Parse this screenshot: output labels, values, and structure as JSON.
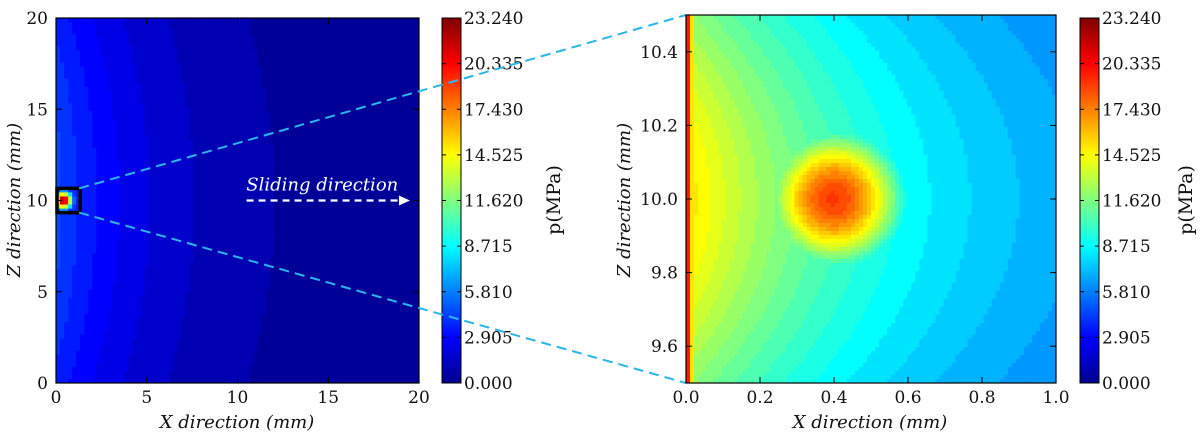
{
  "chart_data": [
    {
      "type": "heatmap",
      "panel": "left",
      "xlabel": "X direction (mm)",
      "ylabel": "Z direction (mm)",
      "xlim": [
        0,
        20
      ],
      "ylim": [
        0,
        20
      ],
      "xticks": [
        "0",
        "5",
        "10",
        "15",
        "20"
      ],
      "yticks": [
        "0",
        "5",
        "10",
        "15",
        "20"
      ],
      "field": {
        "peak_value": 23.24,
        "peak_x": 0.4,
        "peak_z": 10.0,
        "edge_value": 4.0,
        "far_value": 0.4
      },
      "annotation": {
        "text": "Sliding direction",
        "arrow_from": [
          10.5,
          10.0
        ],
        "arrow_to": [
          19.5,
          10.0
        ]
      },
      "zoom_box": {
        "x": [
          0.0,
          1.0
        ],
        "z": [
          9.5,
          10.5
        ]
      },
      "colorbar": {
        "label": "p(MPa)",
        "min": 0.0,
        "max": 23.24,
        "ticks": [
          "23.240",
          "20.335",
          "17.430",
          "14.525",
          "11.620",
          "8.715",
          "5.810",
          "2.905",
          "0.000"
        ]
      }
    },
    {
      "type": "heatmap",
      "panel": "right",
      "xlabel": "X direction (mm)",
      "ylabel": "Z direction (mm)",
      "xlim": [
        0.0,
        1.0
      ],
      "ylim": [
        9.5,
        10.5
      ],
      "xticks": [
        "0.0",
        "0.2",
        "0.4",
        "0.6",
        "0.8",
        "1.0"
      ],
      "yticks": [
        "9.6",
        "9.8",
        "10.0",
        "10.2",
        "10.4"
      ],
      "field": {
        "peak_value": 19.0,
        "peak_x": 0.4,
        "peak_z": 10.0,
        "edge_value": 22.0,
        "far_value": 4.8
      },
      "colorbar": {
        "label": "p(MPa)",
        "min": 0.0,
        "max": 23.24,
        "ticks": [
          "23.240",
          "20.335",
          "17.430",
          "14.525",
          "11.620",
          "8.715",
          "5.810",
          "2.905",
          "0.000"
        ]
      }
    }
  ],
  "colors": {
    "zoom_line": "#29b6e8",
    "box": "#000000",
    "arrow": "#ffffff"
  }
}
